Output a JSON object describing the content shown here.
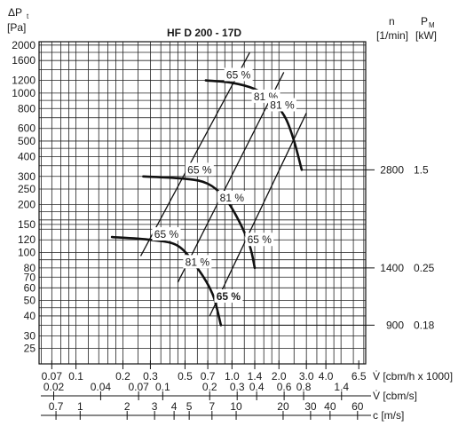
{
  "chart_data": {
    "type": "line",
    "title": "HF D 200 - 17D",
    "y_axis": {
      "label_symbol": "ΔP",
      "label_sub": "t",
      "unit": "[Pa]",
      "scale": "log",
      "range": [
        20,
        2000
      ],
      "tick_labels": [
        "2000",
        "1600",
        "1200",
        "1000",
        "800",
        "600",
        "500",
        "400",
        "300",
        "250",
        "200",
        "150",
        "120",
        "100",
        "80",
        "70",
        "60",
        "50",
        "40",
        "30",
        "25"
      ]
    },
    "right_headers": {
      "n_label": "n",
      "n_unit": "[1/min]",
      "p_label": "P",
      "p_sub": "M",
      "p_unit": "[kW]"
    },
    "x_axes": [
      {
        "unit": "[cbm/h x 1000]",
        "symbol": "V̇",
        "scale": "log",
        "ticks": [
          {
            "v": 0.07,
            "t": "0.07"
          },
          {
            "v": 0.1,
            "t": "0.1"
          },
          {
            "v": 0.2,
            "t": "0.2"
          },
          {
            "v": 0.3,
            "t": "0.3"
          },
          {
            "v": 0.5,
            "t": "0.5"
          },
          {
            "v": 0.7,
            "t": "0.7"
          },
          {
            "v": 1.0,
            "t": "1.0"
          },
          {
            "v": 1.4,
            "t": "1.4"
          },
          {
            "v": 2.0,
            "t": "2.0"
          },
          {
            "v": 3.0,
            "t": "3.0"
          },
          {
            "v": 4.0,
            "t": "4.0"
          },
          {
            "v": 6.5,
            "t": "6.5"
          }
        ]
      },
      {
        "unit": "[cbm/s]",
        "symbol": "V̇",
        "scale": "log",
        "ticks": [
          {
            "v": 0.02,
            "t": "0.02"
          },
          {
            "v": 0.04,
            "t": "0.04"
          },
          {
            "v": 0.07,
            "t": "0.07"
          },
          {
            "v": 0.1,
            "t": "0.1"
          },
          {
            "v": 0.2,
            "t": "0.2"
          },
          {
            "v": 0.3,
            "t": "0.3"
          },
          {
            "v": 0.4,
            "t": "0.4"
          },
          {
            "v": 0.6,
            "t": "0.6"
          },
          {
            "v": 0.8,
            "t": "0.8"
          },
          {
            "v": 1.4,
            "t": "1.4"
          }
        ]
      },
      {
        "unit": "c [m/s]",
        "symbol": "",
        "scale": "log",
        "ticks": [
          {
            "v": 0.7,
            "t": "0.7"
          },
          {
            "v": 1,
            "t": "1"
          },
          {
            "v": 2,
            "t": "2"
          },
          {
            "v": 3,
            "t": "3"
          },
          {
            "v": 4,
            "t": "4"
          },
          {
            "v": 5,
            "t": "5"
          },
          {
            "v": 7,
            "t": "7"
          },
          {
            "v": 10,
            "t": "10"
          },
          {
            "v": 20,
            "t": "20"
          },
          {
            "v": 30,
            "t": "30"
          },
          {
            "v": 40,
            "t": "40"
          },
          {
            "v": 60,
            "t": "60"
          }
        ]
      }
    ],
    "series": [
      {
        "rpm": "2800",
        "power": "1.5",
        "points": [
          [
            0.68,
            1200
          ],
          [
            1.0,
            1160
          ],
          [
            1.4,
            1060
          ],
          [
            1.8,
            900
          ],
          [
            2.2,
            700
          ],
          [
            2.5,
            500
          ],
          [
            2.8,
            330
          ]
        ]
      },
      {
        "rpm": "1400",
        "power": "0.25",
        "points": [
          [
            0.27,
            300
          ],
          [
            0.5,
            290
          ],
          [
            0.7,
            270
          ],
          [
            0.9,
            220
          ],
          [
            1.1,
            160
          ],
          [
            1.3,
            110
          ],
          [
            1.4,
            80
          ]
        ]
      },
      {
        "rpm": "900",
        "power": "0.18",
        "points": [
          [
            0.17,
            125
          ],
          [
            0.3,
            120
          ],
          [
            0.45,
            110
          ],
          [
            0.6,
            80
          ],
          [
            0.75,
            55
          ],
          [
            0.85,
            35
          ]
        ]
      }
    ],
    "efficiency_lines": [
      {
        "label": "65 %",
        "points": [
          [
            0.26,
            95
          ],
          [
            1.3,
            1800
          ]
        ]
      },
      {
        "label": "81 %",
        "points": [
          [
            0.45,
            65
          ],
          [
            2.15,
            1350
          ]
        ]
      },
      {
        "label": "65 %",
        "points": [
          [
            0.72,
            40
          ],
          [
            3.0,
            750
          ]
        ]
      }
    ],
    "efficiency_labels": [
      {
        "text": "65 %",
        "x": 1.1,
        "y": 1300,
        "bold": false
      },
      {
        "text": "81 %",
        "x": 1.65,
        "y": 950,
        "bold": false
      },
      {
        "text": "81 %",
        "x": 2.1,
        "y": 840,
        "bold": false
      },
      {
        "text": "65 %",
        "x": 0.62,
        "y": 330,
        "bold": false
      },
      {
        "text": "81 %",
        "x": 1.0,
        "y": 220,
        "bold": false
      },
      {
        "text": "65 %",
        "x": 0.38,
        "y": 130,
        "bold": false
      },
      {
        "text": "65 %",
        "x": 1.5,
        "y": 120,
        "bold": false
      },
      {
        "text": "81 %",
        "x": 0.6,
        "y": 87,
        "bold": false
      },
      {
        "text": "65 %",
        "x": 0.95,
        "y": 53,
        "bold": true
      }
    ]
  }
}
